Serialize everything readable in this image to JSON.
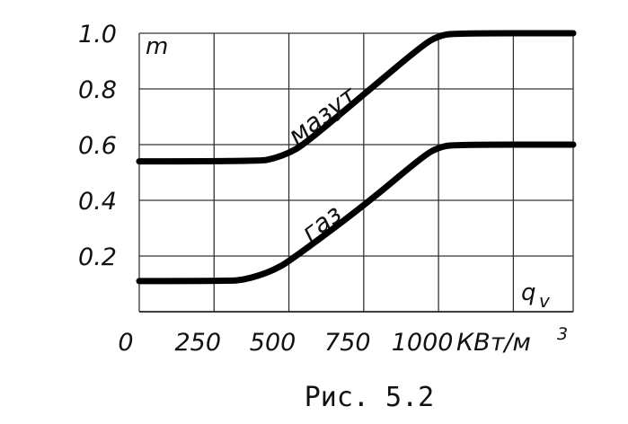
{
  "chart_data": {
    "type": "line",
    "ylabel": "m",
    "xlabel": "q",
    "xlabel_sub": "v",
    "unit_label": "КВт/м",
    "unit_exp": "3",
    "xlim": [
      0,
      1450
    ],
    "ylim": [
      0,
      1.0
    ],
    "x_ticks": [
      {
        "value": 0,
        "label": "0"
      },
      {
        "value": 250,
        "label": "250"
      },
      {
        "value": 500,
        "label": "500"
      },
      {
        "value": 750,
        "label": "750"
      },
      {
        "value": 1000,
        "label": "1000"
      }
    ],
    "y_ticks": [
      {
        "value": 0.2,
        "label": "0.2"
      },
      {
        "value": 0.4,
        "label": "0.4"
      },
      {
        "value": 0.6,
        "label": "0.6"
      },
      {
        "value": 0.8,
        "label": "0.8"
      },
      {
        "value": 1.0,
        "label": "1.0"
      }
    ],
    "grid_x": [
      0,
      250,
      500,
      750,
      1000,
      1250
    ],
    "grid_y": [
      0.2,
      0.4,
      0.6,
      0.8,
      1.0
    ],
    "series": [
      {
        "name": "мазут",
        "points": [
          [
            0,
            0.54
          ],
          [
            400,
            0.54
          ],
          [
            450,
            0.55
          ],
          [
            500,
            0.57
          ],
          [
            550,
            0.6
          ],
          [
            750,
            0.78
          ],
          [
            950,
            0.96
          ],
          [
            1000,
            0.99
          ],
          [
            1050,
            1.0
          ],
          [
            1450,
            1.0
          ]
        ]
      },
      {
        "name": "газ",
        "points": [
          [
            0,
            0.11
          ],
          [
            300,
            0.11
          ],
          [
            350,
            0.115
          ],
          [
            400,
            0.13
          ],
          [
            450,
            0.15
          ],
          [
            500,
            0.18
          ],
          [
            750,
            0.38
          ],
          [
            950,
            0.56
          ],
          [
            1000,
            0.59
          ],
          [
            1050,
            0.6
          ],
          [
            1450,
            0.6
          ]
        ]
      }
    ]
  },
  "caption": "Рис. 5.2"
}
